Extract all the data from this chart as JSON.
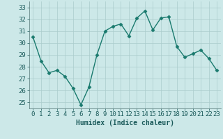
{
  "xlabel": "Humidex (Indice chaleur)",
  "x": [
    0,
    1,
    2,
    3,
    4,
    5,
    6,
    7,
    8,
    9,
    10,
    11,
    12,
    13,
    14,
    15,
    16,
    17,
    18,
    19,
    20,
    21,
    22,
    23
  ],
  "y": [
    30.5,
    28.5,
    27.5,
    27.7,
    27.2,
    26.2,
    24.8,
    26.3,
    29.0,
    31.0,
    31.4,
    31.6,
    30.6,
    32.1,
    32.7,
    31.1,
    32.1,
    32.2,
    29.7,
    28.8,
    29.1,
    29.4,
    28.7,
    27.7
  ],
  "line_color": "#1a7a6e",
  "marker": "D",
  "marker_size": 2.5,
  "line_width": 1.0,
  "bg_color": "#cce8e8",
  "grid_color": "#aacccc",
  "ylim": [
    24.5,
    33.5
  ],
  "yticks": [
    25,
    26,
    27,
    28,
    29,
    30,
    31,
    32,
    33
  ],
  "xticks": [
    0,
    1,
    2,
    3,
    4,
    5,
    6,
    7,
    8,
    9,
    10,
    11,
    12,
    13,
    14,
    15,
    16,
    17,
    18,
    19,
    20,
    21,
    22,
    23
  ],
  "xlabel_fontsize": 7,
  "tick_fontsize": 6.5
}
